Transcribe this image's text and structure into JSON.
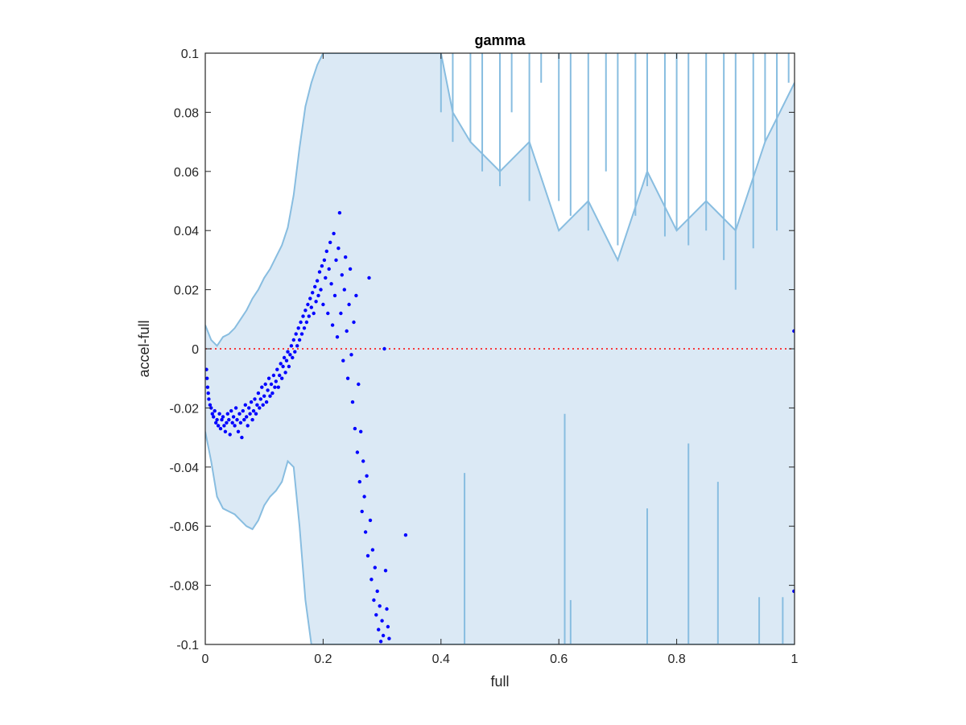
{
  "chart_data": {
    "type": "scatter",
    "title": "gamma",
    "xlabel": "full",
    "ylabel": "accel-full",
    "xlim": [
      0,
      1
    ],
    "ylim": [
      -0.1,
      0.1
    ],
    "grid": false,
    "legend": "none",
    "x_ticks": [
      0,
      0.2,
      0.4,
      0.6,
      0.8,
      1
    ],
    "x_tick_labels": [
      "0",
      "0.2",
      "0.4",
      "0.6",
      "0.8",
      "1"
    ],
    "y_ticks": [
      -0.1,
      -0.08,
      -0.06,
      -0.04,
      -0.02,
      0,
      0.02,
      0.04,
      0.06,
      0.08,
      0.1
    ],
    "y_tick_labels": [
      "-0.1",
      "-0.08",
      "-0.06",
      "-0.04",
      "-0.02",
      "0",
      "0.02",
      "0.04",
      "0.06",
      "0.08",
      "0.1"
    ],
    "colors": {
      "points": "#0000ff",
      "band_fill": "#dbe9f5",
      "band_line": "#88bde0",
      "zero_line": "#ff0000",
      "axes": "#262626"
    },
    "reference_line": {
      "y": 0,
      "style": "dotted"
    },
    "band": {
      "x": [
        0,
        0.01,
        0.02,
        0.03,
        0.04,
        0.05,
        0.06,
        0.07,
        0.08,
        0.09,
        0.1,
        0.11,
        0.12,
        0.13,
        0.14,
        0.15,
        0.16,
        0.17,
        0.18,
        0.19,
        0.2,
        0.21,
        0.22,
        0.23,
        0.24,
        0.25,
        0.3,
        0.35,
        0.38,
        0.4,
        0.42,
        0.45,
        0.5,
        0.55,
        0.6,
        0.65,
        0.7,
        0.75,
        0.8,
        0.85,
        0.9,
        0.95,
        1
      ],
      "upper": [
        0.008,
        0.003,
        0.001,
        0.004,
        0.005,
        0.007,
        0.01,
        0.013,
        0.017,
        0.02,
        0.024,
        0.027,
        0.031,
        0.035,
        0.041,
        0.052,
        0.068,
        0.082,
        0.09,
        0.096,
        0.1,
        0.1,
        0.1,
        0.1,
        0.1,
        0.1,
        0.1,
        0.1,
        0.1,
        0.1,
        0.08,
        0.07,
        0.06,
        0.07,
        0.04,
        0.05,
        0.03,
        0.06,
        0.04,
        0.05,
        0.04,
        0.07,
        0.09
      ],
      "lower": [
        -0.028,
        -0.038,
        -0.05,
        -0.054,
        -0.055,
        -0.056,
        -0.058,
        -0.06,
        -0.061,
        -0.058,
        -0.053,
        -0.05,
        -0.048,
        -0.045,
        -0.038,
        -0.04,
        -0.06,
        -0.085,
        -0.1,
        -0.1,
        -0.1,
        -0.1,
        -0.1,
        -0.1,
        -0.1,
        -0.1,
        -0.1,
        -0.1,
        -0.1,
        -0.1,
        -0.1,
        -0.1,
        -0.1,
        -0.1,
        -0.1,
        -0.1,
        -0.1,
        -0.1,
        -0.1,
        -0.1,
        -0.1,
        -0.1,
        -0.1
      ]
    },
    "band_spikes": [
      {
        "x": 0.38,
        "y": 0.1
      },
      {
        "x": 0.4,
        "y": 0.08
      },
      {
        "x": 0.42,
        "y": 0.07
      },
      {
        "x": 0.45,
        "y": 0.07
      },
      {
        "x": 0.47,
        "y": 0.06
      },
      {
        "x": 0.5,
        "y": 0.055
      },
      {
        "x": 0.52,
        "y": 0.08
      },
      {
        "x": 0.55,
        "y": 0.05
      },
      {
        "x": 0.57,
        "y": 0.09
      },
      {
        "x": 0.6,
        "y": 0.05
      },
      {
        "x": 0.62,
        "y": 0.045
      },
      {
        "x": 0.65,
        "y": 0.04
      },
      {
        "x": 0.68,
        "y": 0.06
      },
      {
        "x": 0.7,
        "y": 0.035
      },
      {
        "x": 0.73,
        "y": 0.045
      },
      {
        "x": 0.75,
        "y": 0.055
      },
      {
        "x": 0.78,
        "y": 0.038
      },
      {
        "x": 0.8,
        "y": 0.04
      },
      {
        "x": 0.82,
        "y": 0.035
      },
      {
        "x": 0.85,
        "y": 0.04
      },
      {
        "x": 0.88,
        "y": 0.03
      },
      {
        "x": 0.9,
        "y": 0.02
      },
      {
        "x": 0.93,
        "y": 0.034
      },
      {
        "x": 0.95,
        "y": 0.07
      },
      {
        "x": 0.97,
        "y": 0.04
      },
      {
        "x": 0.99,
        "y": 0.09
      },
      {
        "x": 0.44,
        "y": -0.042
      },
      {
        "x": 0.62,
        "y": -0.085
      },
      {
        "x": 0.75,
        "y": -0.054
      },
      {
        "x": 0.94,
        "y": -0.084
      },
      {
        "x": 0.98,
        "y": -0.084
      },
      {
        "x": 0.61,
        "y": -0.022
      },
      {
        "x": 0.82,
        "y": -0.032
      },
      {
        "x": 0.87,
        "y": -0.045
      }
    ],
    "points": [
      {
        "x": 0.002,
        "y": -0.007
      },
      {
        "x": 0.003,
        "y": -0.01
      },
      {
        "x": 0.004,
        "y": -0.013
      },
      {
        "x": 0.005,
        "y": -0.015
      },
      {
        "x": 0.006,
        "y": -0.017
      },
      {
        "x": 0.008,
        "y": -0.019
      },
      {
        "x": 0.01,
        "y": -0.02
      },
      {
        "x": 0.012,
        "y": -0.022
      },
      {
        "x": 0.014,
        "y": -0.023
      },
      {
        "x": 0.016,
        "y": -0.021
      },
      {
        "x": 0.018,
        "y": -0.025
      },
      {
        "x": 0.02,
        "y": -0.024
      },
      {
        "x": 0.022,
        "y": -0.026
      },
      {
        "x": 0.024,
        "y": -0.022
      },
      {
        "x": 0.026,
        "y": -0.027
      },
      {
        "x": 0.028,
        "y": -0.024
      },
      {
        "x": 0.03,
        "y": -0.023
      },
      {
        "x": 0.032,
        "y": -0.026
      },
      {
        "x": 0.034,
        "y": -0.028
      },
      {
        "x": 0.036,
        "y": -0.025
      },
      {
        "x": 0.038,
        "y": -0.022
      },
      {
        "x": 0.04,
        "y": -0.024
      },
      {
        "x": 0.042,
        "y": -0.029
      },
      {
        "x": 0.044,
        "y": -0.021
      },
      {
        "x": 0.046,
        "y": -0.025
      },
      {
        "x": 0.048,
        "y": -0.023
      },
      {
        "x": 0.05,
        "y": -0.026
      },
      {
        "x": 0.052,
        "y": -0.02
      },
      {
        "x": 0.054,
        "y": -0.024
      },
      {
        "x": 0.056,
        "y": -0.028
      },
      {
        "x": 0.058,
        "y": -0.022
      },
      {
        "x": 0.06,
        "y": -0.025
      },
      {
        "x": 0.062,
        "y": -0.03
      },
      {
        "x": 0.064,
        "y": -0.021
      },
      {
        "x": 0.066,
        "y": -0.024
      },
      {
        "x": 0.068,
        "y": -0.019
      },
      {
        "x": 0.07,
        "y": -0.023
      },
      {
        "x": 0.072,
        "y": -0.026
      },
      {
        "x": 0.074,
        "y": -0.02
      },
      {
        "x": 0.076,
        "y": -0.022
      },
      {
        "x": 0.078,
        "y": -0.018
      },
      {
        "x": 0.08,
        "y": -0.024
      },
      {
        "x": 0.082,
        "y": -0.021
      },
      {
        "x": 0.084,
        "y": -0.017
      },
      {
        "x": 0.086,
        "y": -0.022
      },
      {
        "x": 0.088,
        "y": -0.019
      },
      {
        "x": 0.09,
        "y": -0.015
      },
      {
        "x": 0.092,
        "y": -0.02
      },
      {
        "x": 0.094,
        "y": -0.017
      },
      {
        "x": 0.096,
        "y": -0.013
      },
      {
        "x": 0.098,
        "y": -0.019
      },
      {
        "x": 0.1,
        "y": -0.016
      },
      {
        "x": 0.102,
        "y": -0.012
      },
      {
        "x": 0.104,
        "y": -0.018
      },
      {
        "x": 0.106,
        "y": -0.014
      },
      {
        "x": 0.108,
        "y": -0.01
      },
      {
        "x": 0.11,
        "y": -0.016
      },
      {
        "x": 0.112,
        "y": -0.012
      },
      {
        "x": 0.114,
        "y": -0.015
      },
      {
        "x": 0.116,
        "y": -0.009
      },
      {
        "x": 0.118,
        "y": -0.013
      },
      {
        "x": 0.12,
        "y": -0.011
      },
      {
        "x": 0.122,
        "y": -0.007
      },
      {
        "x": 0.124,
        "y": -0.013
      },
      {
        "x": 0.126,
        "y": -0.009
      },
      {
        "x": 0.128,
        "y": -0.005
      },
      {
        "x": 0.13,
        "y": -0.01
      },
      {
        "x": 0.132,
        "y": -0.006
      },
      {
        "x": 0.134,
        "y": -0.003
      },
      {
        "x": 0.136,
        "y": -0.008
      },
      {
        "x": 0.138,
        "y": -0.004
      },
      {
        "x": 0.14,
        "y": -0.001
      },
      {
        "x": 0.142,
        "y": -0.006
      },
      {
        "x": 0.144,
        "y": -0.002
      },
      {
        "x": 0.146,
        "y": 0.001
      },
      {
        "x": 0.148,
        "y": -0.003
      },
      {
        "x": 0.15,
        "y": 0.003
      },
      {
        "x": 0.152,
        "y": -0.001
      },
      {
        "x": 0.154,
        "y": 0.005
      },
      {
        "x": 0.156,
        "y": 0.001
      },
      {
        "x": 0.158,
        "y": 0.007
      },
      {
        "x": 0.16,
        "y": 0.003
      },
      {
        "x": 0.162,
        "y": 0.009
      },
      {
        "x": 0.164,
        "y": 0.005
      },
      {
        "x": 0.166,
        "y": 0.011
      },
      {
        "x": 0.168,
        "y": 0.007
      },
      {
        "x": 0.17,
        "y": 0.013
      },
      {
        "x": 0.172,
        "y": 0.009
      },
      {
        "x": 0.174,
        "y": 0.015
      },
      {
        "x": 0.176,
        "y": 0.011
      },
      {
        "x": 0.178,
        "y": 0.017
      },
      {
        "x": 0.18,
        "y": 0.014
      },
      {
        "x": 0.182,
        "y": 0.019
      },
      {
        "x": 0.184,
        "y": 0.012
      },
      {
        "x": 0.186,
        "y": 0.021
      },
      {
        "x": 0.188,
        "y": 0.016
      },
      {
        "x": 0.19,
        "y": 0.023
      },
      {
        "x": 0.192,
        "y": 0.018
      },
      {
        "x": 0.194,
        "y": 0.026
      },
      {
        "x": 0.196,
        "y": 0.02
      },
      {
        "x": 0.198,
        "y": 0.028
      },
      {
        "x": 0.2,
        "y": 0.015
      },
      {
        "x": 0.202,
        "y": 0.03
      },
      {
        "x": 0.204,
        "y": 0.024
      },
      {
        "x": 0.206,
        "y": 0.033
      },
      {
        "x": 0.208,
        "y": 0.012
      },
      {
        "x": 0.21,
        "y": 0.027
      },
      {
        "x": 0.212,
        "y": 0.036
      },
      {
        "x": 0.214,
        "y": 0.022
      },
      {
        "x": 0.216,
        "y": 0.008
      },
      {
        "x": 0.218,
        "y": 0.039
      },
      {
        "x": 0.22,
        "y": 0.018
      },
      {
        "x": 0.222,
        "y": 0.03
      },
      {
        "x": 0.224,
        "y": 0.004
      },
      {
        "x": 0.226,
        "y": 0.034
      },
      {
        "x": 0.228,
        "y": 0.046
      },
      {
        "x": 0.23,
        "y": 0.012
      },
      {
        "x": 0.232,
        "y": 0.025
      },
      {
        "x": 0.234,
        "y": -0.004
      },
      {
        "x": 0.236,
        "y": 0.02
      },
      {
        "x": 0.238,
        "y": 0.031
      },
      {
        "x": 0.24,
        "y": 0.006
      },
      {
        "x": 0.242,
        "y": -0.01
      },
      {
        "x": 0.244,
        "y": 0.015
      },
      {
        "x": 0.246,
        "y": 0.027
      },
      {
        "x": 0.248,
        "y": -0.002
      },
      {
        "x": 0.25,
        "y": -0.018
      },
      {
        "x": 0.252,
        "y": 0.009
      },
      {
        "x": 0.254,
        "y": -0.027
      },
      {
        "x": 0.256,
        "y": 0.018
      },
      {
        "x": 0.258,
        "y": -0.035
      },
      {
        "x": 0.26,
        "y": -0.012
      },
      {
        "x": 0.262,
        "y": -0.045
      },
      {
        "x": 0.264,
        "y": -0.028
      },
      {
        "x": 0.266,
        "y": -0.055
      },
      {
        "x": 0.268,
        "y": -0.038
      },
      {
        "x": 0.27,
        "y": -0.05
      },
      {
        "x": 0.272,
        "y": -0.062
      },
      {
        "x": 0.274,
        "y": -0.043
      },
      {
        "x": 0.276,
        "y": -0.07
      },
      {
        "x": 0.278,
        "y": 0.024
      },
      {
        "x": 0.28,
        "y": -0.058
      },
      {
        "x": 0.282,
        "y": -0.078
      },
      {
        "x": 0.284,
        "y": -0.068
      },
      {
        "x": 0.286,
        "y": -0.085
      },
      {
        "x": 0.288,
        "y": -0.074
      },
      {
        "x": 0.29,
        "y": -0.09
      },
      {
        "x": 0.292,
        "y": -0.082
      },
      {
        "x": 0.294,
        "y": -0.095
      },
      {
        "x": 0.296,
        "y": -0.087
      },
      {
        "x": 0.298,
        "y": -0.099
      },
      {
        "x": 0.3,
        "y": -0.092
      },
      {
        "x": 0.302,
        "y": -0.097
      },
      {
        "x": 0.304,
        "y": 0.0
      },
      {
        "x": 0.306,
        "y": -0.075
      },
      {
        "x": 0.308,
        "y": -0.088
      },
      {
        "x": 0.31,
        "y": -0.094
      },
      {
        "x": 0.312,
        "y": -0.098
      },
      {
        "x": 0.34,
        "y": -0.063
      },
      {
        "x": 0.999,
        "y": 0.006
      },
      {
        "x": 0.999,
        "y": -0.082
      }
    ]
  }
}
